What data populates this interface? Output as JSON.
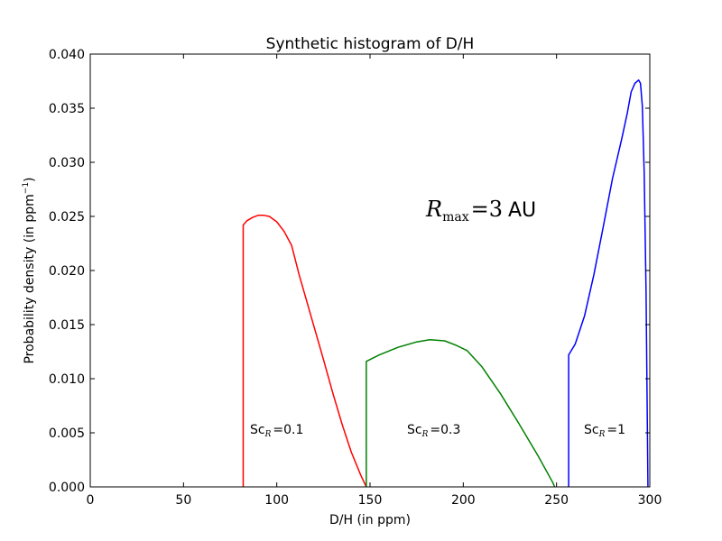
{
  "chart_data": {
    "type": "line",
    "title": "Synthetic histogram of D/H",
    "xlabel": "D/H (in ppm)",
    "ylabel": "Probability density (in ppm",
    "ylabel_sup": "−1",
    "ylabel_tail": ")",
    "xlim": [
      0,
      300
    ],
    "ylim": [
      0,
      0.04
    ],
    "xticks": [
      0,
      50,
      100,
      150,
      200,
      250,
      300
    ],
    "yticks": [
      0.0,
      0.005,
      0.01,
      0.015,
      0.02,
      0.025,
      0.03,
      0.035,
      0.04
    ],
    "xtick_labels": [
      "0",
      "50",
      "100",
      "150",
      "200",
      "250",
      "300"
    ],
    "ytick_labels": [
      "0.000",
      "0.005",
      "0.010",
      "0.015",
      "0.020",
      "0.025",
      "0.030",
      "0.035",
      "0.040"
    ],
    "annotation": {
      "symbol": "R",
      "subscript": "max",
      "equals": "=3",
      "unit": "AU"
    },
    "series": [
      {
        "color": "#ff0000",
        "label_prefix": "Sc",
        "label_sub": "R",
        "label_value": "=0.1",
        "points": [
          [
            82,
            0
          ],
          [
            82,
            0.0242
          ],
          [
            84,
            0.0246
          ],
          [
            87,
            0.0249
          ],
          [
            90,
            0.0251
          ],
          [
            93,
            0.0251
          ],
          [
            96,
            0.025
          ],
          [
            100,
            0.0245
          ],
          [
            104,
            0.0236
          ],
          [
            108,
            0.0223
          ],
          [
            112,
            0.0196
          ],
          [
            116,
            0.0172
          ],
          [
            120,
            0.0148
          ],
          [
            125,
            0.0118
          ],
          [
            130,
            0.0087
          ],
          [
            135,
            0.0058
          ],
          [
            140,
            0.0032
          ],
          [
            145,
            0.0011
          ],
          [
            148,
            0.0
          ]
        ]
      },
      {
        "color": "#008000",
        "label_prefix": "Sc",
        "label_sub": "R",
        "label_value": "=0.3",
        "points": [
          [
            148,
            0
          ],
          [
            148,
            0.0116
          ],
          [
            155,
            0.0122
          ],
          [
            165,
            0.0129
          ],
          [
            175,
            0.0134
          ],
          [
            182,
            0.0136
          ],
          [
            190,
            0.0135
          ],
          [
            196,
            0.0131
          ],
          [
            202,
            0.0126
          ],
          [
            210,
            0.0111
          ],
          [
            220,
            0.0086
          ],
          [
            230,
            0.0058
          ],
          [
            240,
            0.0029
          ],
          [
            248,
            0.0004
          ],
          [
            249,
            0.0
          ]
        ]
      },
      {
        "color": "#0000ff",
        "label_prefix": "Sc",
        "label_sub": "R",
        "label_value": "=1",
        "points": [
          [
            256.5,
            0
          ],
          [
            256.5,
            0.0122
          ],
          [
            260,
            0.0132
          ],
          [
            265,
            0.0158
          ],
          [
            270,
            0.0196
          ],
          [
            275,
            0.024
          ],
          [
            280,
            0.0285
          ],
          [
            285,
            0.0322
          ],
          [
            288,
            0.0346
          ],
          [
            290,
            0.0365
          ],
          [
            292,
            0.0373
          ],
          [
            294,
            0.0376
          ],
          [
            295,
            0.0373
          ],
          [
            296,
            0.0352
          ],
          [
            297,
            0.029
          ],
          [
            298,
            0.018
          ],
          [
            298.5,
            0.009
          ],
          [
            299,
            0.0
          ]
        ]
      }
    ]
  }
}
